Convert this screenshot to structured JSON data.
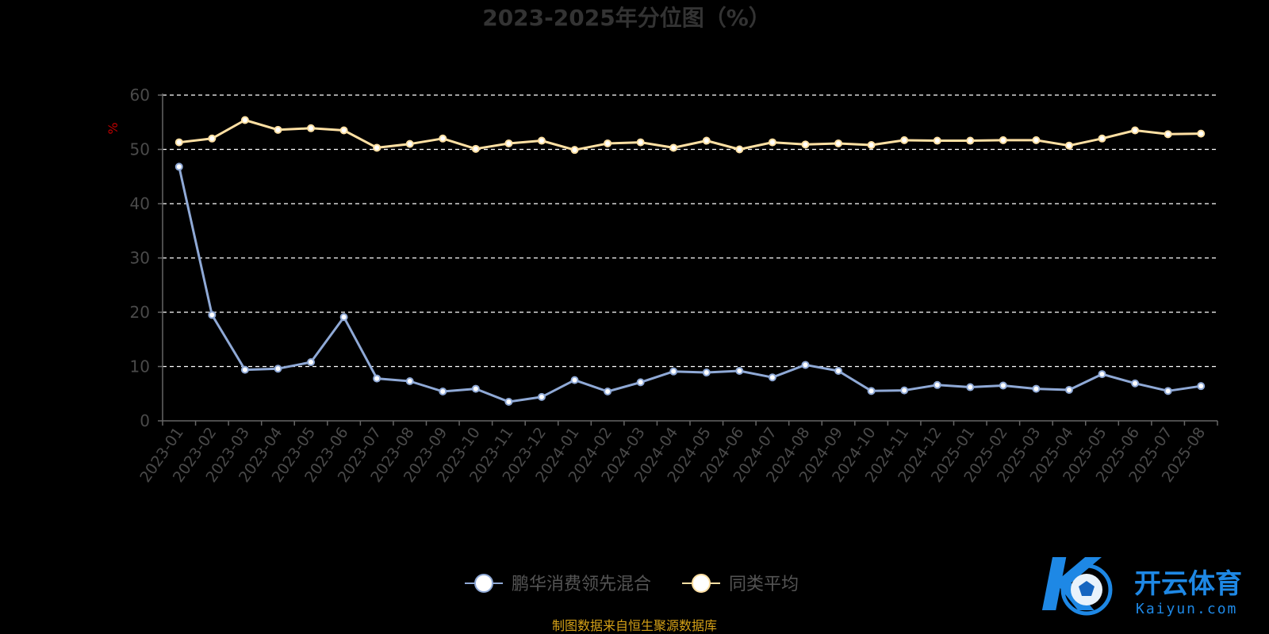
{
  "chart_data": {
    "type": "line",
    "title": "2023-2025年分位图（%）",
    "ylabel": "%",
    "xlabel": "",
    "ylim": [
      0,
      60
    ],
    "yticks": [
      0,
      10,
      20,
      30,
      40,
      50,
      60
    ],
    "grid": true,
    "legend_position": "bottom",
    "categories": [
      "2023-01",
      "2023-02",
      "2023-03",
      "2023-04",
      "2023-05",
      "2023-06",
      "2023-07",
      "2023-08",
      "2023-09",
      "2023-10",
      "2023-11",
      "2023-12",
      "2024-01",
      "2024-02",
      "2024-03",
      "2024-04",
      "2024-05",
      "2024-06",
      "2024-07",
      "2024-08",
      "2024-09",
      "2024-10",
      "2024-11",
      "2024-12",
      "2025-01",
      "2025-02",
      "2025-03",
      "2025-04",
      "2025-05",
      "2025-06",
      "2025-07",
      "2025-08"
    ],
    "series": [
      {
        "name": "鹏华消费领先混合",
        "color": "#8fa9d6",
        "values": [
          46.8,
          19.5,
          9.4,
          9.6,
          10.8,
          19.1,
          7.8,
          7.3,
          5.4,
          5.9,
          3.5,
          4.4,
          7.5,
          5.4,
          7.1,
          9.1,
          8.9,
          9.2,
          8.0,
          10.3,
          9.2,
          5.5,
          5.6,
          6.6,
          6.2,
          6.5,
          5.9,
          5.7,
          8.6,
          6.9,
          5.5,
          6.4
        ]
      },
      {
        "name": "同类平均",
        "color": "#ffe0a3",
        "values": [
          51.3,
          52.0,
          55.4,
          53.6,
          53.9,
          53.5,
          50.3,
          51.0,
          52.0,
          50.1,
          51.1,
          51.6,
          49.9,
          51.1,
          51.3,
          50.3,
          51.6,
          50.0,
          51.3,
          50.9,
          51.1,
          50.8,
          51.7,
          51.6,
          51.6,
          51.7,
          51.7,
          50.7,
          52.0,
          53.5,
          52.8,
          52.9
        ]
      }
    ]
  },
  "footer": {
    "source": "制图数据来自恒生聚源数据库"
  },
  "watermark": {
    "text_cn": "开云体育",
    "text_en": "Kaiyun.com"
  }
}
